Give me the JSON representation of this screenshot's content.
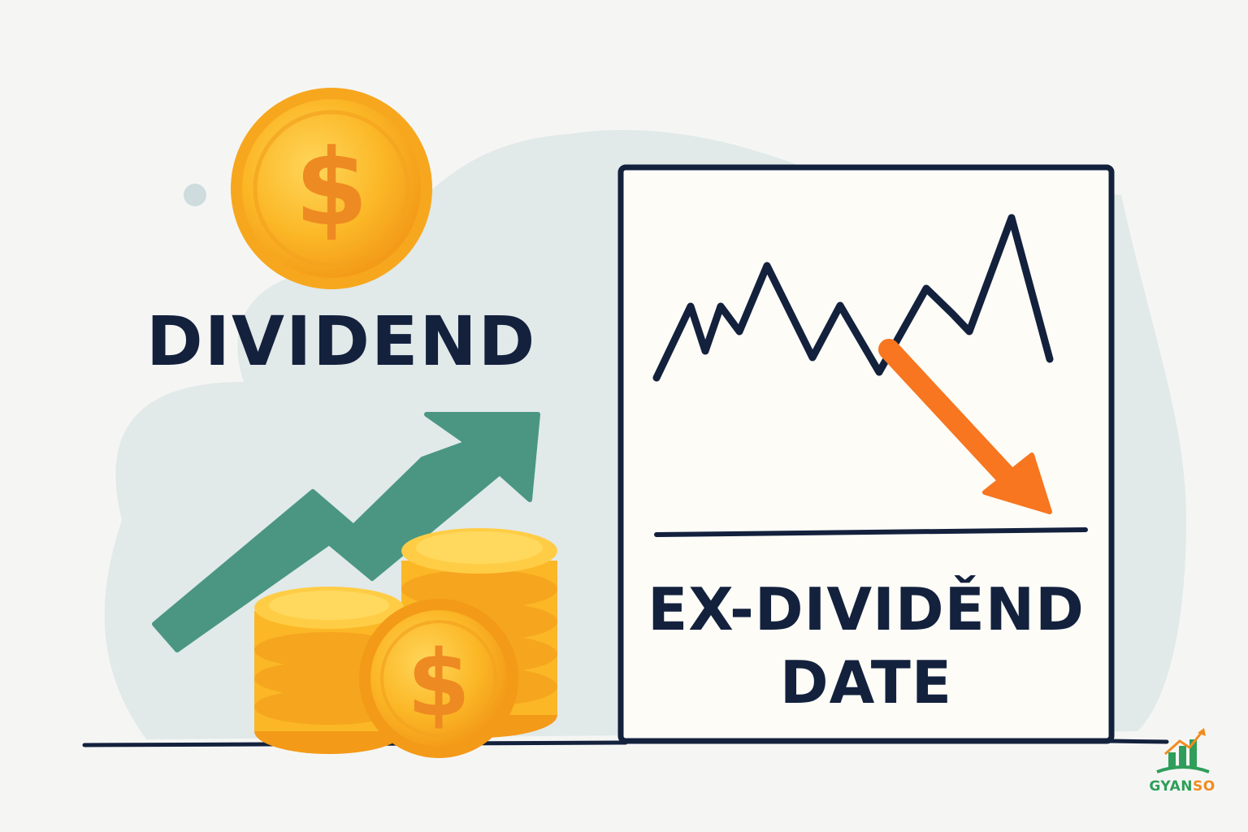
{
  "labels": {
    "dividend": "DIVIDEND",
    "ex_dividend_line1": "EX-DIVIDĚND",
    "ex_dividend_line2": "DATE"
  },
  "brand": {
    "name_primary": "GYAN",
    "name_accent": "SO"
  },
  "icons": [
    "dollar-coin-icon",
    "rising-arrow-icon",
    "coin-stack-icon",
    "falling-arrow-icon",
    "stock-line-icon",
    "logo-icon"
  ],
  "colors": {
    "navy": "#13213d",
    "coin_gold": "#fbb726",
    "coin_dark": "#f39a18",
    "teal_arrow": "#4a9682",
    "orange_arrow": "#f7761f",
    "blob": "#dfe8e8",
    "panel": "#fdfcf7",
    "brand_green": "#2f9e5a",
    "brand_orange": "#f28b1e"
  }
}
